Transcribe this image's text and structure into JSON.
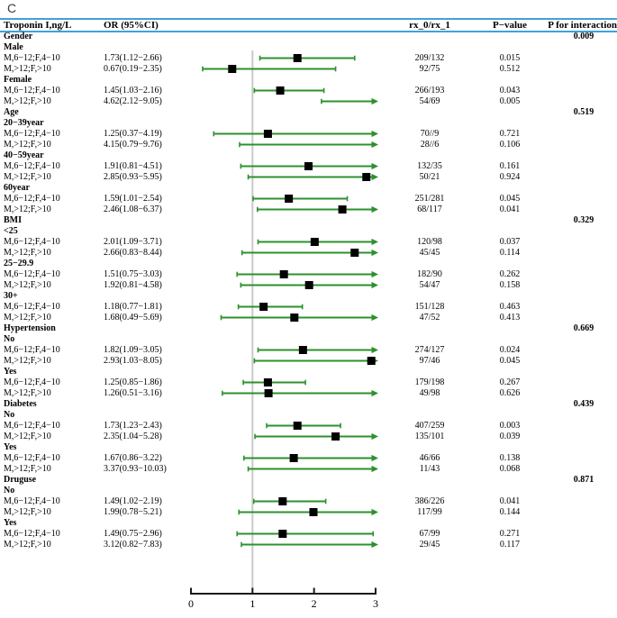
{
  "panel_label": "C",
  "colors": {
    "green": "#2d912d",
    "blue": "#3ea2d9",
    "refline_gray": "#c9c9c9",
    "marker_black": "#000000",
    "axis_black": "#1a1a1a"
  },
  "header": {
    "col_label": "Troponin I,ng/L",
    "col_or": "OR (95%CI)",
    "col_rx": "rx_0/rx_1",
    "col_p": "P−value",
    "col_pint": "P for interaction"
  },
  "chart_data": {
    "type": "forest",
    "x_axis": {
      "min": 0,
      "max": 3,
      "ticks": [
        "0",
        "1",
        "2",
        "3"
      ],
      "reference_line": 1,
      "clip_arrow_above": 3
    },
    "rows": [
      {
        "type": "group",
        "label": "Gender",
        "p_interaction": "0.009"
      },
      {
        "type": "sub",
        "label": "Male"
      },
      {
        "type": "data",
        "label": "M,6−12;F,4−10",
        "or_ci": "1.73(1.12−2.66)",
        "est": 1.73,
        "lo": 1.12,
        "hi": 2.66,
        "rx": "209/132",
        "p": "0.015"
      },
      {
        "type": "data",
        "label": "M,>12;F,>10",
        "or_ci": "0.67(0.19−2.35)",
        "est": 0.67,
        "lo": 0.19,
        "hi": 2.35,
        "rx": "92/75",
        "p": "0.512"
      },
      {
        "type": "sub",
        "label": "Female"
      },
      {
        "type": "data",
        "label": "M,6−12;F,4−10",
        "or_ci": "1.45(1.03−2.16)",
        "est": 1.45,
        "lo": 1.03,
        "hi": 2.16,
        "rx": "266/193",
        "p": "0.043"
      },
      {
        "type": "data",
        "label": "M,>12;F,>10",
        "or_ci": "4.62(2.12−9.05)",
        "est": 4.62,
        "lo": 2.12,
        "hi": 9.05,
        "rx": "54/69",
        "p": "0.005"
      },
      {
        "type": "group",
        "label": "Age",
        "p_interaction": "0.519"
      },
      {
        "type": "sub",
        "label": "20−39year"
      },
      {
        "type": "data",
        "label": "M,6−12;F,4−10",
        "or_ci": "1.25(0.37−4.19)",
        "est": 1.25,
        "lo": 0.37,
        "hi": 4.19,
        "rx": "70//9",
        "p": "0.721"
      },
      {
        "type": "data",
        "label": "M,>12;F,>10",
        "or_ci": "4.15(0.79−9.76)",
        "est": 4.15,
        "lo": 0.79,
        "hi": 9.76,
        "rx": "28//6",
        "p": "0.106"
      },
      {
        "type": "sub",
        "label": "40−59year"
      },
      {
        "type": "data",
        "label": "M,6−12;F,4−10",
        "or_ci": "1.91(0.81−4.51)",
        "est": 1.91,
        "lo": 0.81,
        "hi": 4.51,
        "rx": "132/35",
        "p": "0.161"
      },
      {
        "type": "data",
        "label": "M,>12;F,>10",
        "or_ci": "2.85(0.93−5.95)",
        "est": 2.85,
        "lo": 0.93,
        "hi": 5.95,
        "rx": "50/21",
        "p": "0.924"
      },
      {
        "type": "sub",
        "label": "60year"
      },
      {
        "type": "data",
        "label": "M,6−12;F,4−10",
        "or_ci": "1.59(1.01−2.54)",
        "est": 1.59,
        "lo": 1.01,
        "hi": 2.54,
        "rx": "251/281",
        "p": "0.045"
      },
      {
        "type": "data",
        "label": "M,>12;F,>10",
        "or_ci": "2.46(1.08−6.37)",
        "est": 2.46,
        "lo": 1.08,
        "hi": 6.37,
        "rx": "68/117",
        "p": "0.041"
      },
      {
        "type": "group",
        "label": "BMI",
        "p_interaction": "0.329"
      },
      {
        "type": "sub",
        "label": "<25"
      },
      {
        "type": "data",
        "label": "M,6−12;F,4−10",
        "or_ci": "2.01(1.09−3.71)",
        "est": 2.01,
        "lo": 1.09,
        "hi": 3.71,
        "rx": "120/98",
        "p": "0.037"
      },
      {
        "type": "data",
        "label": "M,>12;F,>10",
        "or_ci": "2.66(0.83−8.44)",
        "est": 2.66,
        "lo": 0.83,
        "hi": 8.44,
        "rx": "45/45",
        "p": "0.114"
      },
      {
        "type": "sub",
        "label": "25−29.9"
      },
      {
        "type": "data",
        "label": "M,6−12;F,4−10",
        "or_ci": "1.51(0.75−3.03)",
        "est": 1.51,
        "lo": 0.75,
        "hi": 3.03,
        "rx": "182/90",
        "p": "0.262"
      },
      {
        "type": "data",
        "label": "M,>12;F,>10",
        "or_ci": "1.92(0.81−4.58)",
        "est": 1.92,
        "lo": 0.81,
        "hi": 4.58,
        "rx": "54/47",
        "p": "0.158"
      },
      {
        "type": "sub",
        "label": "30+"
      },
      {
        "type": "data",
        "label": "M,6−12;F,4−10",
        "or_ci": "1.18(0.77−1.81)",
        "est": 1.18,
        "lo": 0.77,
        "hi": 1.81,
        "rx": "151/128",
        "p": "0.463"
      },
      {
        "type": "data",
        "label": "M,>12;F,>10",
        "or_ci": "1.68(0.49−5.69)",
        "est": 1.68,
        "lo": 0.49,
        "hi": 5.69,
        "rx": "47/52",
        "p": "0.413"
      },
      {
        "type": "group",
        "label": "Hypertension",
        "p_interaction": "0.669"
      },
      {
        "type": "sub",
        "label": "No"
      },
      {
        "type": "data",
        "label": "M,6−12;F,4−10",
        "or_ci": "1.82(1.09−3.05)",
        "est": 1.82,
        "lo": 1.09,
        "hi": 3.05,
        "rx": "274/127",
        "p": "0.024"
      },
      {
        "type": "data",
        "label": "M,>12;F,>10",
        "or_ci": "2.93(1.03−8.05)",
        "est": 2.93,
        "lo": 1.03,
        "hi": 8.05,
        "rx": "97/46",
        "p": "0.045"
      },
      {
        "type": "sub",
        "label": "Yes"
      },
      {
        "type": "data",
        "label": "M,6−12;F,4−10",
        "or_ci": "1.25(0.85−1.86)",
        "est": 1.25,
        "lo": 0.85,
        "hi": 1.86,
        "rx": "179/198",
        "p": "0.267"
      },
      {
        "type": "data",
        "label": "M,>12;F,>10",
        "or_ci": "1.26(0.51−3.16)",
        "est": 1.26,
        "lo": 0.51,
        "hi": 3.16,
        "rx": "49/98",
        "p": "0.626"
      },
      {
        "type": "group",
        "label": "Diabetes",
        "p_interaction": "0.439"
      },
      {
        "type": "sub",
        "label": "No"
      },
      {
        "type": "data",
        "label": "M,6−12;F,4−10",
        "or_ci": "1.73(1.23−2.43)",
        "est": 1.73,
        "lo": 1.23,
        "hi": 2.43,
        "rx": "407/259",
        "p": "0.003"
      },
      {
        "type": "data",
        "label": "M,>12;F,>10",
        "or_ci": "2.35(1.04−5.28)",
        "est": 2.35,
        "lo": 1.04,
        "hi": 5.28,
        "rx": "135/101",
        "p": "0.039"
      },
      {
        "type": "sub",
        "label": "Yes"
      },
      {
        "type": "data",
        "label": "M,6−12;F,4−10",
        "or_ci": "1.67(0.86−3.22)",
        "est": 1.67,
        "lo": 0.86,
        "hi": 3.22,
        "rx": "46/66",
        "p": "0.138"
      },
      {
        "type": "data",
        "label": "M,>12;F,>10",
        "or_ci": "3.37(0.93−10.03)",
        "est": 3.37,
        "lo": 0.93,
        "hi": 10.03,
        "rx": "11/43",
        "p": "0.068"
      },
      {
        "type": "group",
        "label": "Druguse",
        "p_interaction": "0.871"
      },
      {
        "type": "sub",
        "label": "No"
      },
      {
        "type": "data",
        "label": "M,6−12;F,4−10",
        "or_ci": "1.49(1.02−2.19)",
        "est": 1.49,
        "lo": 1.02,
        "hi": 2.19,
        "rx": "386/226",
        "p": "0.041"
      },
      {
        "type": "data",
        "label": "M,>12;F,>10",
        "or_ci": "1.99(0.78−5.21)",
        "est": 1.99,
        "lo": 0.78,
        "hi": 5.21,
        "rx": "117/99",
        "p": "0.144"
      },
      {
        "type": "sub",
        "label": "Yes"
      },
      {
        "type": "data",
        "label": "M,6−12;F,4−10",
        "or_ci": "1.49(0.75−2.96)",
        "est": 1.49,
        "lo": 0.75,
        "hi": 2.96,
        "rx": "67/99",
        "p": "0.271"
      },
      {
        "type": "data",
        "label": "M,>12;F,>10",
        "or_ci": "3.12(0.82−7.83)",
        "est": 3.12,
        "lo": 0.82,
        "hi": 7.83,
        "rx": "29/45",
        "p": "0.117"
      }
    ]
  }
}
